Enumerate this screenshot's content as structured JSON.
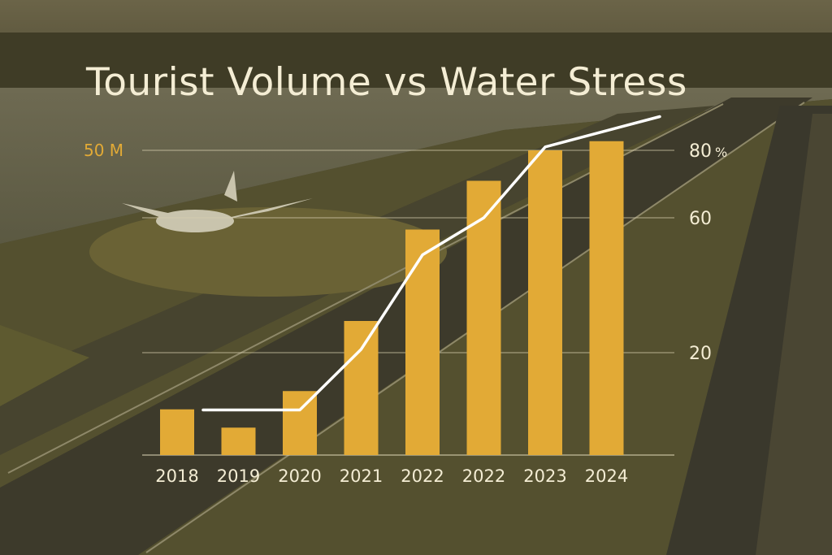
{
  "chart_data": {
    "type": "bar",
    "title": "Tourist Volume vs Water Stress",
    "categories": [
      "2018",
      "2019",
      "2020",
      "2021",
      "2022",
      "2022",
      "2023",
      "2024"
    ],
    "series": [
      {
        "type": "bar",
        "axis": "left",
        "values": [
          7.5,
          4.5,
          10.5,
          22,
          37,
          45,
          50,
          51.5
        ]
      },
      {
        "type": "line",
        "axis": "right",
        "values": [
          3,
          3,
          3,
          21,
          49,
          60,
          81,
          90
        ]
      }
    ],
    "left_axis": {
      "tick_label": "50 M",
      "tick_value": 50,
      "range": [
        0,
        56
      ]
    },
    "right_axis": {
      "ticks": [
        {
          "value": 20,
          "label": "20"
        },
        {
          "value": 60,
          "label": "60"
        },
        {
          "value": 80,
          "label": "80",
          "unit": "%"
        }
      ],
      "range": [
        -6,
        110
      ]
    },
    "grid": true,
    "colors": {
      "bar": "#e2aa36",
      "line": "#ffffff",
      "grid": "#d8cfb0",
      "title": "#f4edd4",
      "left_tick": "#e2aa36"
    }
  }
}
